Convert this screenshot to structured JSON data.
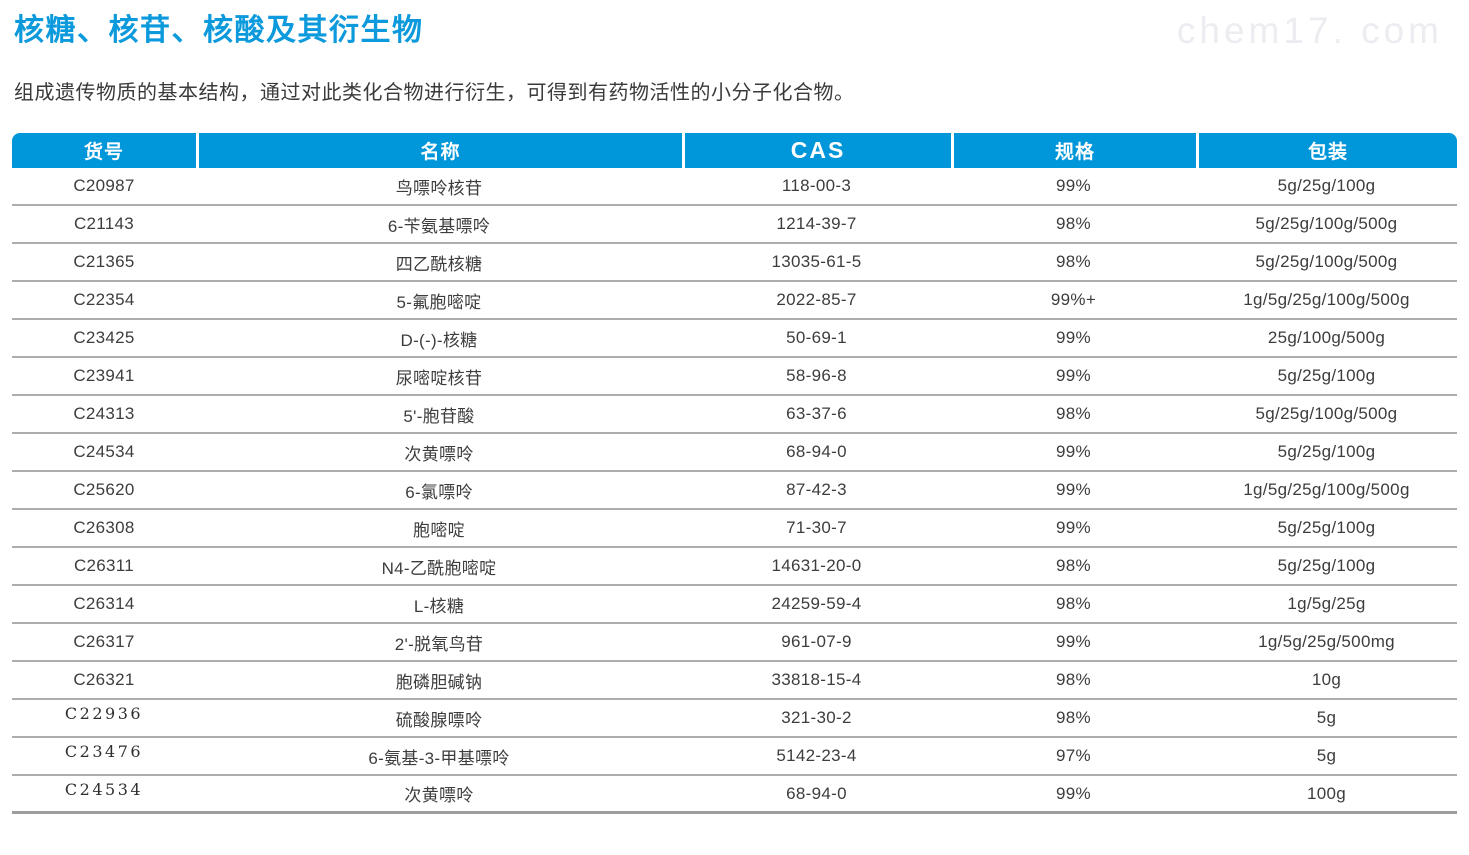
{
  "page": {
    "title": "核糖、核苷、核酸及其衍生物",
    "subtitle": "组成遗传物质的基本结构，通过对此类化合物进行衍生，可得到有药物活性的小分子化合物。",
    "watermark": "chem17. com"
  },
  "colors": {
    "accent_blue": "#0D9ADC",
    "header_bg": "#0096DA",
    "row_divider": "#ADADAD",
    "body_text": "#3D3D3D",
    "watermark_text": "#ECECF1"
  },
  "table": {
    "columns": [
      {
        "key": "code",
        "label": "货号"
      },
      {
        "key": "name",
        "label": "名称"
      },
      {
        "key": "cas",
        "label": "CAS"
      },
      {
        "key": "purity",
        "label": "规格"
      },
      {
        "key": "package",
        "label": "包装"
      }
    ],
    "serif_code_rows": [
      14,
      15,
      16
    ],
    "rows": [
      {
        "code": "C20987",
        "name": "鸟嘌呤核苷",
        "cas": "118-00-3",
        "purity": "99%",
        "package": "5g/25g/100g"
      },
      {
        "code": "C21143",
        "name": "6-苄氨基嘌呤",
        "cas": "1214-39-7",
        "purity": "98%",
        "package": "5g/25g/100g/500g"
      },
      {
        "code": "C21365",
        "name": "四乙酰核糖",
        "cas": "13035-61-5",
        "purity": "98%",
        "package": "5g/25g/100g/500g"
      },
      {
        "code": "C22354",
        "name": "5-氟胞嘧啶",
        "cas": "2022-85-7",
        "purity": "99%+",
        "package": "1g/5g/25g/100g/500g"
      },
      {
        "code": "C23425",
        "name": "D-(-)-核糖",
        "cas": "50-69-1",
        "purity": "99%",
        "package": "25g/100g/500g"
      },
      {
        "code": "C23941",
        "name": "尿嘧啶核苷",
        "cas": "58-96-8",
        "purity": "99%",
        "package": "5g/25g/100g"
      },
      {
        "code": "C24313",
        "name": "5'-胞苷酸",
        "cas": "63-37-6",
        "purity": "98%",
        "package": "5g/25g/100g/500g"
      },
      {
        "code": "C24534",
        "name": "次黄嘌呤",
        "cas": "68-94-0",
        "purity": "99%",
        "package": "5g/25g/100g"
      },
      {
        "code": "C25620",
        "name": "6-氯嘌呤",
        "cas": "87-42-3",
        "purity": "99%",
        "package": "1g/5g/25g/100g/500g"
      },
      {
        "code": "C26308",
        "name": "胞嘧啶",
        "cas": "71-30-7",
        "purity": "99%",
        "package": "5g/25g/100g"
      },
      {
        "code": "C26311",
        "name": "N4-乙酰胞嘧啶",
        "cas": "14631-20-0",
        "purity": "98%",
        "package": "5g/25g/100g"
      },
      {
        "code": "C26314",
        "name": "L-核糖",
        "cas": "24259-59-4",
        "purity": "98%",
        "package": "1g/5g/25g"
      },
      {
        "code": "C26317",
        "name": "2'-脱氧鸟苷",
        "cas": "961-07-9",
        "purity": "99%",
        "package": "1g/5g/25g/500mg"
      },
      {
        "code": "C26321",
        "name": "胞磷胆碱钠",
        "cas": "33818-15-4",
        "purity": "98%",
        "package": "10g"
      },
      {
        "code": "C22936",
        "name": "硫酸腺嘌呤",
        "cas": "321-30-2",
        "purity": "98%",
        "package": "5g"
      },
      {
        "code": "C23476",
        "name": "6-氨基-3-甲基嘌呤",
        "cas": "5142-23-4",
        "purity": "97%",
        "package": "5g"
      },
      {
        "code": "C24534",
        "name": "次黄嘌呤",
        "cas": "68-94-0",
        "purity": "99%",
        "package": "100g"
      }
    ]
  }
}
